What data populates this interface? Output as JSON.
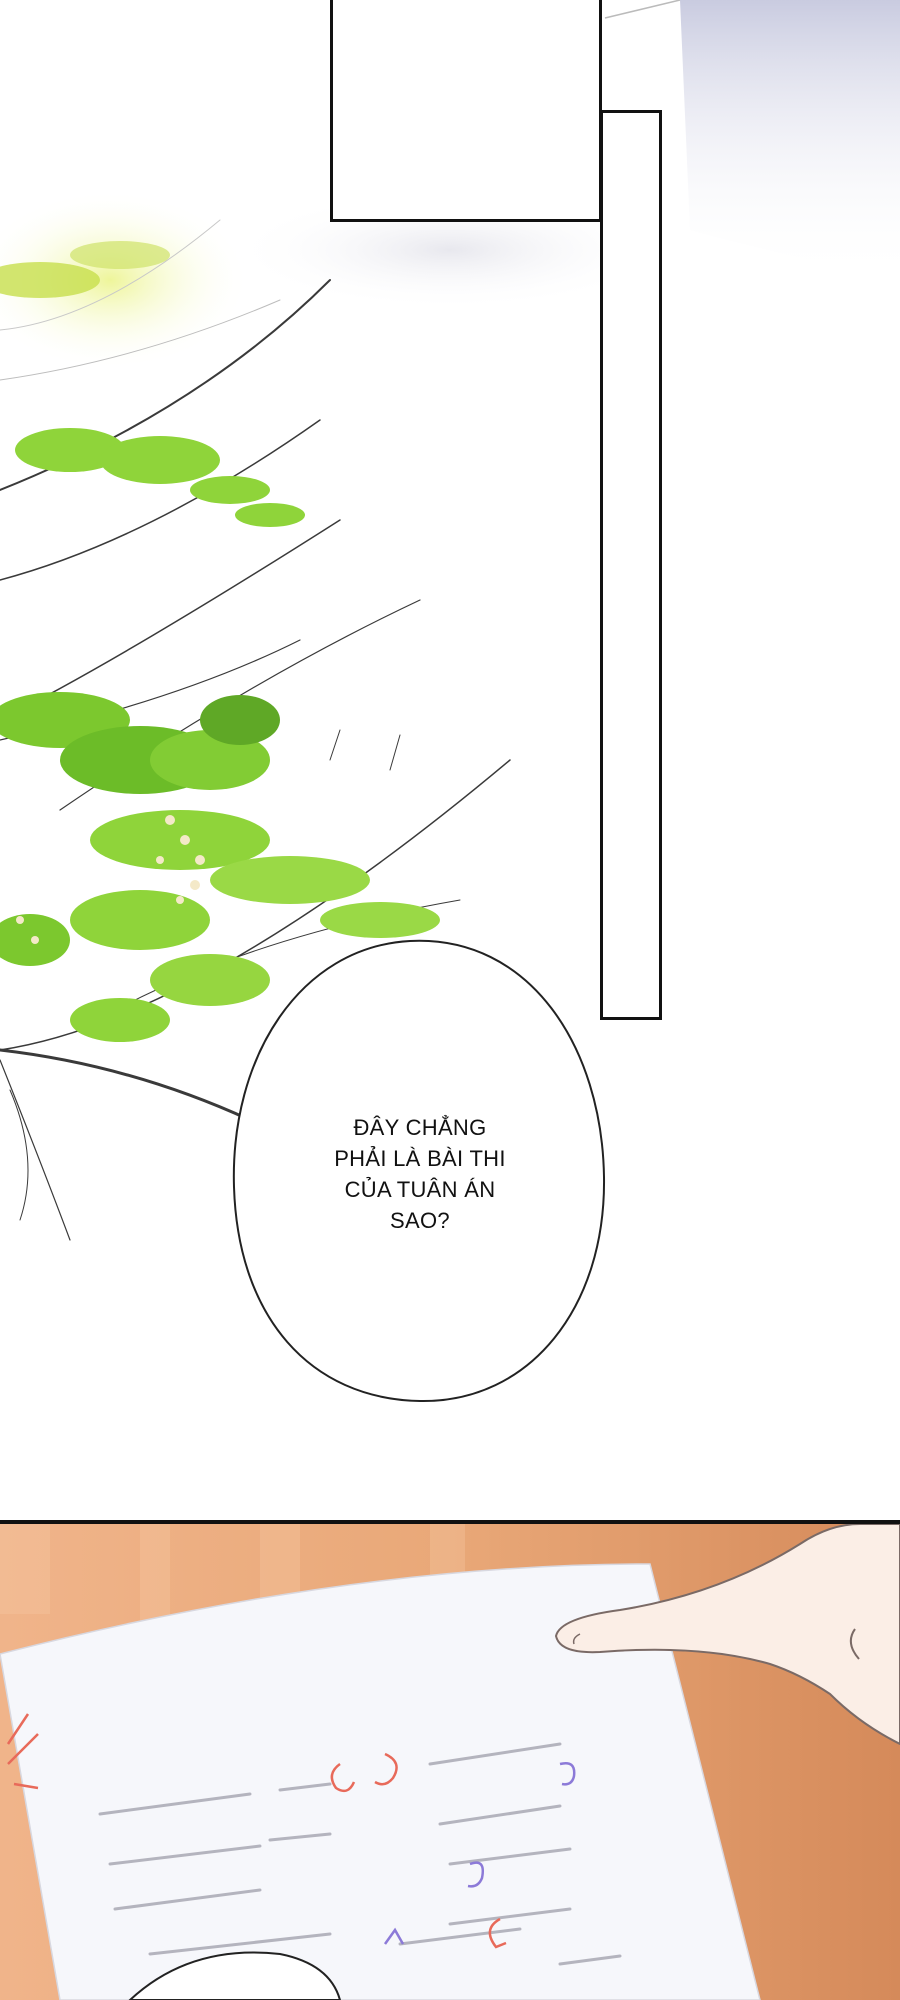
{
  "page": {
    "panels": [
      "top-panel",
      "bottom-panel"
    ]
  },
  "speech": {
    "line1": "ĐÂY CHẲNG",
    "line2": "PHẢI LÀ BÀI THI",
    "line3": "CỦA TUÂN ÁN",
    "line4": "SAO?"
  },
  "colors": {
    "leaf": "#8fd43a",
    "branch": "#3a3a3a",
    "desk": "#e7a679",
    "paper": "#f6f7fb",
    "mark_red": "#e86a5a",
    "mark_purple": "#8c7ad8"
  },
  "icons": [
    "speech-bubble",
    "tree-branch",
    "hand-pointing",
    "exam-paper"
  ]
}
